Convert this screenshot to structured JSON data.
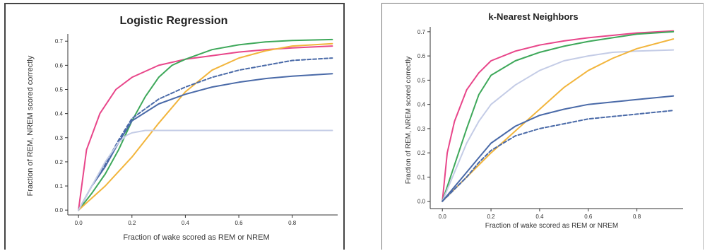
{
  "chart_data": [
    {
      "type": "line",
      "title": "Logistic Regression",
      "xlabel": "Fraction of wake scored as REM or NREM",
      "ylabel": "Fraction of REM, NREM scored correctly",
      "xlim": [
        -0.04,
        0.97
      ],
      "ylim": [
        -0.02,
        0.73
      ],
      "xticks": [
        "0.0",
        "0.2",
        "0.4",
        "0.6",
        "0.8"
      ],
      "xtick_values": [
        0.0,
        0.2,
        0.4,
        0.6,
        0.8
      ],
      "yticks": [
        "0.0",
        "0.1",
        "0.2",
        "0.3",
        "0.4",
        "0.5",
        "0.6",
        "0.7"
      ],
      "ytick_values": [
        0.0,
        0.1,
        0.2,
        0.3,
        0.4,
        0.5,
        0.6,
        0.7
      ],
      "grid": false,
      "series": [
        {
          "color": "#e8468a",
          "dash": false,
          "x": [
            0.0,
            0.03,
            0.08,
            0.14,
            0.2,
            0.3,
            0.4,
            0.5,
            0.6,
            0.7,
            0.8,
            0.95
          ],
          "y": [
            0.0,
            0.25,
            0.4,
            0.5,
            0.55,
            0.6,
            0.625,
            0.64,
            0.655,
            0.665,
            0.672,
            0.68
          ]
        },
        {
          "color": "#3ea85a",
          "dash": false,
          "x": [
            0.0,
            0.05,
            0.1,
            0.15,
            0.2,
            0.25,
            0.3,
            0.35,
            0.4,
            0.5,
            0.6,
            0.7,
            0.8,
            0.95
          ],
          "y": [
            0.0,
            0.07,
            0.15,
            0.25,
            0.37,
            0.47,
            0.55,
            0.6,
            0.625,
            0.665,
            0.685,
            0.697,
            0.703,
            0.707
          ]
        },
        {
          "color": "#f2b53c",
          "dash": false,
          "x": [
            0.0,
            0.1,
            0.2,
            0.3,
            0.4,
            0.5,
            0.6,
            0.7,
            0.8,
            0.95
          ],
          "y": [
            0.0,
            0.1,
            0.22,
            0.36,
            0.49,
            0.58,
            0.63,
            0.66,
            0.68,
            0.69
          ]
        },
        {
          "color": "#4a6aa8",
          "dash": false,
          "x": [
            0.0,
            0.05,
            0.1,
            0.15,
            0.2,
            0.3,
            0.4,
            0.5,
            0.6,
            0.7,
            0.8,
            0.95
          ],
          "y": [
            0.0,
            0.1,
            0.18,
            0.28,
            0.37,
            0.44,
            0.48,
            0.51,
            0.53,
            0.545,
            0.555,
            0.565
          ]
        },
        {
          "color": "#4a6aa8",
          "dash": true,
          "x": [
            0.0,
            0.05,
            0.1,
            0.15,
            0.2,
            0.3,
            0.4,
            0.5,
            0.6,
            0.7,
            0.8,
            0.95
          ],
          "y": [
            0.0,
            0.1,
            0.19,
            0.29,
            0.38,
            0.46,
            0.51,
            0.55,
            0.58,
            0.6,
            0.62,
            0.63
          ]
        },
        {
          "color": "#c4cce6",
          "dash": false,
          "x": [
            0.0,
            0.05,
            0.1,
            0.15,
            0.18,
            0.2,
            0.25,
            0.3,
            0.5,
            0.7,
            0.95
          ],
          "y": [
            0.0,
            0.1,
            0.2,
            0.28,
            0.31,
            0.32,
            0.33,
            0.33,
            0.33,
            0.33,
            0.33
          ]
        }
      ]
    },
    {
      "type": "line",
      "title": "k-Nearest Neighbors",
      "xlabel": "Fraction of wake scored as REM or NREM",
      "ylabel": "Fraction of REM, NREM scored correctly",
      "xlim": [
        -0.05,
        0.99
      ],
      "ylim": [
        -0.03,
        0.72
      ],
      "xticks": [
        "0.0",
        "0.2",
        "0.4",
        "0.6",
        "0.8"
      ],
      "xtick_values": [
        0.0,
        0.2,
        0.4,
        0.6,
        0.8
      ],
      "yticks": [
        "0.0",
        "0.1",
        "0.2",
        "0.3",
        "0.4",
        "0.5",
        "0.6",
        "0.7"
      ],
      "ytick_values": [
        0.0,
        0.1,
        0.2,
        0.3,
        0.4,
        0.5,
        0.6,
        0.7
      ],
      "grid": false,
      "series": [
        {
          "color": "#e8468a",
          "dash": false,
          "x": [
            0.0,
            0.02,
            0.05,
            0.1,
            0.15,
            0.2,
            0.3,
            0.4,
            0.5,
            0.6,
            0.7,
            0.8,
            0.95
          ],
          "y": [
            0.0,
            0.2,
            0.33,
            0.46,
            0.53,
            0.58,
            0.62,
            0.645,
            0.662,
            0.675,
            0.685,
            0.695,
            0.703
          ]
        },
        {
          "color": "#3ea85a",
          "dash": false,
          "x": [
            0.0,
            0.05,
            0.1,
            0.15,
            0.2,
            0.3,
            0.4,
            0.5,
            0.6,
            0.7,
            0.8,
            0.95
          ],
          "y": [
            0.0,
            0.15,
            0.3,
            0.44,
            0.52,
            0.58,
            0.615,
            0.64,
            0.66,
            0.675,
            0.69,
            0.7
          ]
        },
        {
          "color": "#c4cce6",
          "dash": false,
          "x": [
            0.0,
            0.05,
            0.1,
            0.15,
            0.2,
            0.3,
            0.4,
            0.5,
            0.6,
            0.7,
            0.8,
            0.95
          ],
          "y": [
            0.0,
            0.12,
            0.24,
            0.33,
            0.4,
            0.48,
            0.54,
            0.58,
            0.6,
            0.615,
            0.62,
            0.625
          ]
        },
        {
          "color": "#f2b53c",
          "dash": false,
          "x": [
            0.0,
            0.1,
            0.2,
            0.3,
            0.4,
            0.5,
            0.6,
            0.7,
            0.8,
            0.95
          ],
          "y": [
            0.0,
            0.1,
            0.2,
            0.29,
            0.38,
            0.47,
            0.54,
            0.59,
            0.63,
            0.67
          ]
        },
        {
          "color": "#4a6aa8",
          "dash": false,
          "x": [
            0.0,
            0.05,
            0.1,
            0.15,
            0.2,
            0.3,
            0.4,
            0.5,
            0.6,
            0.7,
            0.8,
            0.95
          ],
          "y": [
            0.0,
            0.06,
            0.12,
            0.18,
            0.24,
            0.31,
            0.355,
            0.38,
            0.4,
            0.41,
            0.42,
            0.435
          ]
        },
        {
          "color": "#4a6aa8",
          "dash": true,
          "x": [
            0.0,
            0.05,
            0.1,
            0.15,
            0.2,
            0.3,
            0.4,
            0.5,
            0.6,
            0.7,
            0.8,
            0.95
          ],
          "y": [
            0.0,
            0.05,
            0.1,
            0.16,
            0.21,
            0.27,
            0.3,
            0.32,
            0.34,
            0.35,
            0.36,
            0.375
          ]
        }
      ]
    }
  ]
}
